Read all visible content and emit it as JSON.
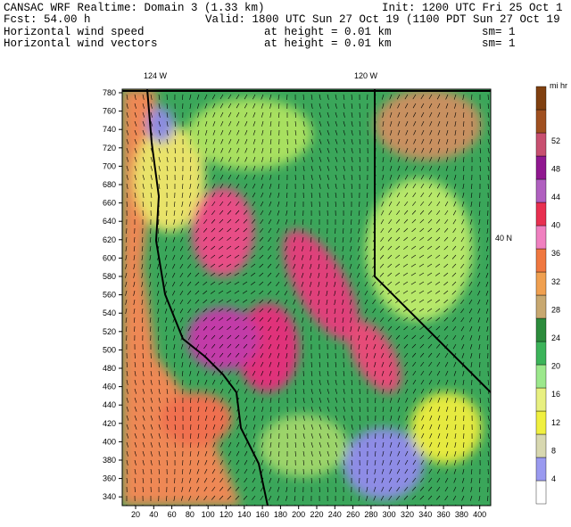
{
  "header": {
    "title": "CANSAC WRF Realtime: Domain 3  (1.33 km)",
    "init": "Init: 1200 UTC Fri 25 Oct 1",
    "fcst": "Fcst:  54.00 h",
    "valid": "Valid: 1800 UTC Sun 27 Oct 19 (1100 PDT Sun 27 Oct 19",
    "fields": [
      {
        "name": "Horizontal wind speed",
        "height": "at height =  0.01 km",
        "sm": "sm= 1"
      },
      {
        "name": "Horizontal wind vectors",
        "height": "at height =  0.01 km",
        "sm": "sm= 1"
      }
    ]
  },
  "map": {
    "longitude_labels": [
      "124 W",
      "120 W"
    ],
    "latitude_labels": [
      "40 N"
    ],
    "y_axis_labels": [
      "780",
      "760",
      "740",
      "720",
      "700",
      "680",
      "660",
      "640",
      "620",
      "600",
      "580",
      "560",
      "540",
      "520",
      "500",
      "480",
      "460",
      "440",
      "420",
      "400",
      "380",
      "360",
      "340"
    ],
    "x_axis_labels": [
      "20",
      "40",
      "60",
      "80",
      "100",
      "120",
      "140",
      "160",
      "180",
      "200",
      "220",
      "240",
      "260",
      "280",
      "300",
      "320",
      "340",
      "360",
      "380",
      "400"
    ]
  },
  "colorbar": {
    "unit": "mi hr",
    "labels": [
      "4",
      "8",
      "12",
      "16",
      "20",
      "24",
      "28",
      "32",
      "36",
      "40",
      "44",
      "48",
      "52"
    ]
  }
}
